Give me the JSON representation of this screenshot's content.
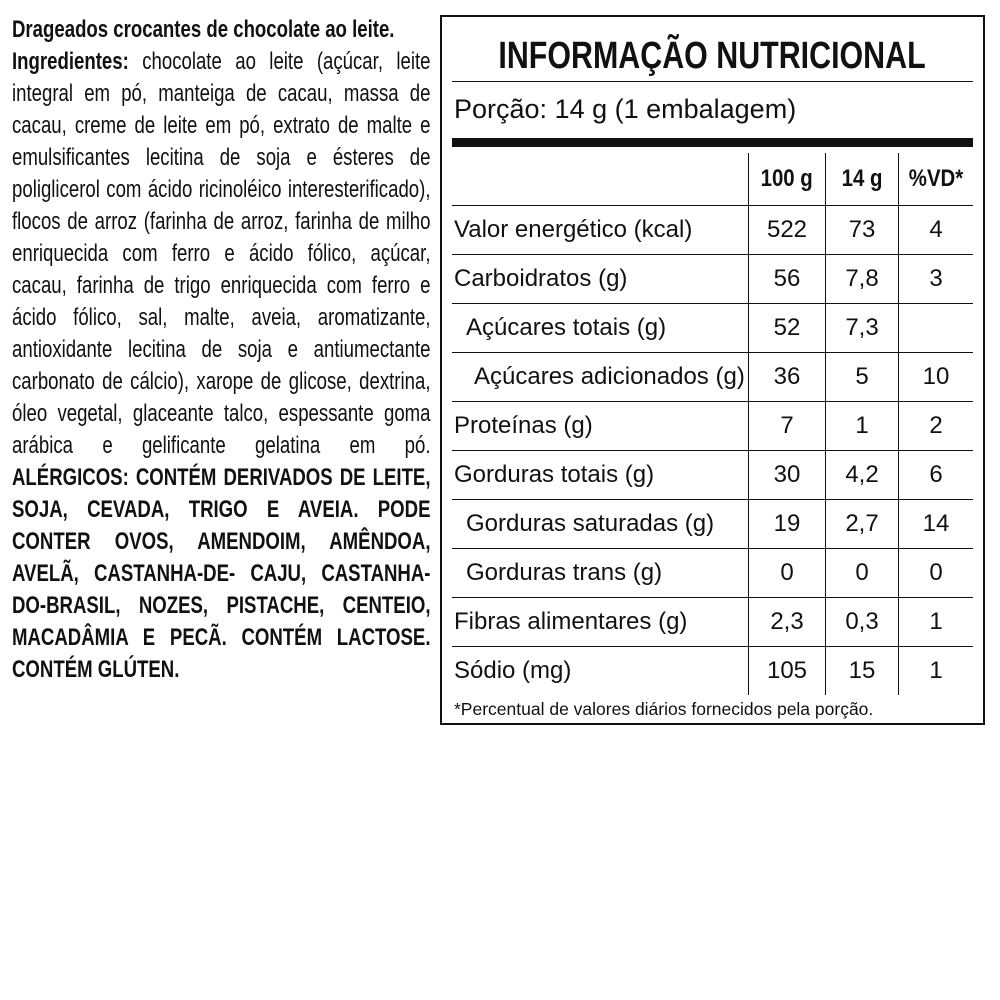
{
  "product": {
    "name": "Drageados crocantes de chocolate ao leite.",
    "ingredients_label": "Ingredientes:",
    "ingredients": "chocolate ao leite (açúcar, leite integral em pó, manteiga de cacau, massa de cacau, creme de leite em pó, extrato de malte e emulsificantes lecitina de soja e ésteres de poliglicerol com ácido ricinoléico interesterificado), flocos de arroz (farinha de arroz, farinha de milho enriquecida com ferro e ácido fólico, açúcar, cacau, farinha de trigo enriquecida com ferro e ácido fólico, sal, malte, aveia, aromatizante, antioxidante lecitina de soja e antiumectante carbonato de cálcio), xarope de glicose, dextrina, óleo vegetal, glaceante talco, espessante goma arábica e gelificante gelatina em pó.",
    "allergens": "ALÉRGICOS: CONTÉM DERIVADOS DE LEITE, SOJA, CEVADA, TRIGO E AVEIA. PODE CONTER OVOS, AMENDOIM, AMÊNDOA, AVELÃ, CASTANHA-DE- CAJU, CASTANHA-DO-BRASIL, NOZES, PISTACHE, CENTEIO, MACADÂMIA E PECÃ. CONTÉM LACTOSE. CONTÉM GLÚTEN."
  },
  "nutrition": {
    "title": "INFORMAÇÃO NUTRICIONAL",
    "portion": "Porção: 14 g (1 embalagem)",
    "headers": [
      "",
      "100 g",
      "14 g",
      "%VD*"
    ],
    "rows": [
      {
        "label": "Valor energético (kcal)",
        "indent": 0,
        "v100": "522",
        "v14": "73",
        "vd": "4"
      },
      {
        "label": "Carboidratos (g)",
        "indent": 0,
        "v100": "56",
        "v14": "7,8",
        "vd": "3"
      },
      {
        "label": "Açúcares totais (g)",
        "indent": 1,
        "v100": "52",
        "v14": "7,3",
        "vd": ""
      },
      {
        "label": "Açúcares adicionados (g)",
        "indent": 2,
        "v100": "36",
        "v14": "5",
        "vd": "10"
      },
      {
        "label": "Proteínas (g)",
        "indent": 0,
        "v100": "7",
        "v14": "1",
        "vd": "2"
      },
      {
        "label": "Gorduras totais (g)",
        "indent": 0,
        "v100": "30",
        "v14": "4,2",
        "vd": "6"
      },
      {
        "label": "Gorduras saturadas (g)",
        "indent": 1,
        "v100": "19",
        "v14": "2,7",
        "vd": "14"
      },
      {
        "label": "Gorduras trans (g)",
        "indent": 1,
        "v100": "0",
        "v14": "0",
        "vd": "0"
      },
      {
        "label": "Fibras alimentares (g)",
        "indent": 0,
        "v100": "2,3",
        "v14": "0,3",
        "vd": "1"
      },
      {
        "label": "Sódio (mg)",
        "indent": 0,
        "v100": "105",
        "v14": "15",
        "vd": "1"
      }
    ],
    "footnote": "*Percentual de valores diários fornecidos pela porção."
  }
}
